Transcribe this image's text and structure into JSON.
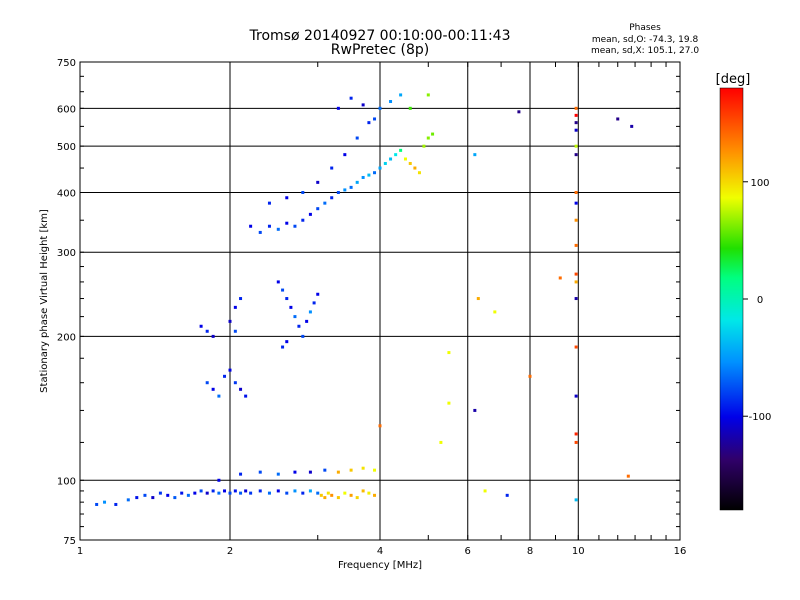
{
  "chart_data": {
    "type": "scatter",
    "title": "Tromsø 20140927 00:10:00-00:11:43",
    "subtitle": "RwPretec (8p)",
    "xlabel": "Frequency [MHz]",
    "ylabel": "Stationary phase Virtual Height [km]",
    "x_scale": "log2",
    "y_scale": "log",
    "xlim": [
      1,
      16
    ],
    "ylim": [
      75,
      750
    ],
    "x_ticks": [
      1,
      2,
      4,
      6,
      8,
      10,
      16
    ],
    "y_ticks": [
      75,
      100,
      200,
      300,
      400,
      500,
      600,
      750
    ],
    "x_gridlines": [
      2,
      4,
      6,
      8,
      10
    ],
    "y_gridlines": [
      100,
      200,
      300,
      400,
      500,
      600
    ],
    "grid": true,
    "phases": {
      "heading": "Phases",
      "o_stats": "mean, sd,O: -74.3, 19.8",
      "x_stats": "mean, sd,X: 105.1, 27.0"
    },
    "colorbar": {
      "label": "[deg]",
      "range": [
        -180,
        180
      ],
      "ticks": [
        100,
        0,
        -100
      ]
    },
    "points": [
      [
        1.08,
        89,
        -80
      ],
      [
        1.12,
        90,
        -60
      ],
      [
        1.18,
        89,
        -90
      ],
      [
        1.25,
        91,
        -70
      ],
      [
        1.3,
        92,
        -95
      ],
      [
        1.35,
        93,
        -80
      ],
      [
        1.4,
        92,
        -110
      ],
      [
        1.45,
        94,
        -85
      ],
      [
        1.5,
        93,
        -100
      ],
      [
        1.55,
        92,
        -75
      ],
      [
        1.6,
        94,
        -95
      ],
      [
        1.65,
        93,
        -70
      ],
      [
        1.7,
        94,
        -100
      ],
      [
        1.75,
        95,
        -80
      ],
      [
        1.8,
        94,
        -110
      ],
      [
        1.85,
        95,
        -90
      ],
      [
        1.9,
        94,
        -70
      ],
      [
        1.95,
        95,
        -100
      ],
      [
        2.0,
        94,
        -80
      ],
      [
        2.05,
        95,
        -95
      ],
      [
        2.1,
        94,
        -75
      ],
      [
        2.15,
        95,
        -105
      ],
      [
        2.2,
        94,
        -85
      ],
      [
        2.3,
        95,
        -90
      ],
      [
        2.4,
        94,
        -70
      ],
      [
        2.5,
        95,
        -100
      ],
      [
        2.6,
        94,
        -80
      ],
      [
        2.7,
        95,
        -60
      ],
      [
        2.8,
        94,
        -90
      ],
      [
        2.9,
        95,
        -50
      ],
      [
        3.0,
        94,
        -70
      ],
      [
        3.05,
        93,
        120
      ],
      [
        3.1,
        92,
        130
      ],
      [
        3.15,
        94,
        110
      ],
      [
        3.2,
        93,
        140
      ],
      [
        3.3,
        92,
        120
      ],
      [
        3.4,
        94,
        100
      ],
      [
        3.5,
        93,
        135
      ],
      [
        3.6,
        92,
        115
      ],
      [
        3.7,
        95,
        125
      ],
      [
        3.8,
        94,
        105
      ],
      [
        3.9,
        93,
        130
      ],
      [
        1.9,
        100,
        -100
      ],
      [
        2.1,
        103,
        -90
      ],
      [
        2.3,
        104,
        -80
      ],
      [
        2.5,
        103,
        -70
      ],
      [
        2.7,
        104,
        -100
      ],
      [
        2.9,
        104,
        -110
      ],
      [
        3.1,
        105,
        -80
      ],
      [
        3.3,
        104,
        130
      ],
      [
        3.5,
        105,
        120
      ],
      [
        3.7,
        106,
        110
      ],
      [
        3.9,
        105,
        100
      ],
      [
        1.75,
        210,
        -100
      ],
      [
        1.8,
        205,
        -90
      ],
      [
        1.85,
        200,
        -110
      ],
      [
        1.8,
        160,
        -80
      ],
      [
        1.85,
        155,
        -100
      ],
      [
        1.9,
        150,
        -70
      ],
      [
        1.95,
        165,
        -90
      ],
      [
        2.0,
        170,
        -100
      ],
      [
        2.05,
        160,
        -85
      ],
      [
        2.1,
        155,
        -110
      ],
      [
        2.15,
        150,
        -95
      ],
      [
        2.05,
        230,
        -100
      ],
      [
        2.1,
        240,
        -90
      ],
      [
        2.0,
        215,
        -110
      ],
      [
        2.05,
        205,
        -80
      ],
      [
        2.5,
        260,
        -100
      ],
      [
        2.55,
        250,
        -80
      ],
      [
        2.6,
        240,
        -90
      ],
      [
        2.65,
        230,
        -100
      ],
      [
        2.7,
        220,
        -70
      ],
      [
        2.75,
        210,
        -90
      ],
      [
        2.8,
        200,
        -80
      ],
      [
        2.85,
        215,
        -100
      ],
      [
        2.9,
        225,
        -60
      ],
      [
        2.95,
        235,
        -90
      ],
      [
        3.0,
        245,
        -100
      ],
      [
        2.6,
        195,
        -100
      ],
      [
        2.55,
        190,
        -90
      ],
      [
        2.2,
        340,
        -100
      ],
      [
        2.3,
        330,
        -80
      ],
      [
        2.4,
        340,
        -90
      ],
      [
        2.5,
        335,
        -70
      ],
      [
        2.6,
        345,
        -100
      ],
      [
        2.7,
        340,
        -80
      ],
      [
        2.8,
        350,
        -90
      ],
      [
        2.9,
        360,
        -100
      ],
      [
        3.0,
        370,
        -80
      ],
      [
        3.1,
        380,
        -70
      ],
      [
        3.2,
        390,
        -90
      ],
      [
        3.3,
        400,
        -80
      ],
      [
        3.4,
        405,
        -60
      ],
      [
        3.5,
        410,
        -70
      ],
      [
        3.6,
        420,
        -50
      ],
      [
        3.7,
        430,
        -60
      ],
      [
        3.8,
        435,
        -40
      ],
      [
        3.9,
        440,
        -70
      ],
      [
        4.0,
        450,
        -50
      ],
      [
        4.1,
        460,
        -30
      ],
      [
        4.2,
        470,
        -40
      ],
      [
        4.3,
        480,
        -20
      ],
      [
        4.4,
        490,
        0
      ],
      [
        4.5,
        470,
        100
      ],
      [
        4.6,
        460,
        120
      ],
      [
        4.7,
        450,
        130
      ],
      [
        4.8,
        440,
        110
      ],
      [
        4.9,
        500,
        70
      ],
      [
        5.0,
        520,
        60
      ],
      [
        5.1,
        530,
        50
      ],
      [
        2.4,
        380,
        -90
      ],
      [
        2.6,
        390,
        -100
      ],
      [
        2.8,
        400,
        -80
      ],
      [
        3.0,
        420,
        -110
      ],
      [
        3.2,
        450,
        -90
      ],
      [
        3.4,
        480,
        -100
      ],
      [
        3.6,
        520,
        -80
      ],
      [
        3.8,
        560,
        -90
      ],
      [
        4.0,
        600,
        -70
      ],
      [
        4.2,
        620,
        -60
      ],
      [
        3.3,
        600,
        -100
      ],
      [
        3.5,
        630,
        -90
      ],
      [
        3.7,
        610,
        -110
      ],
      [
        3.9,
        570,
        -80
      ],
      [
        4.4,
        640,
        -50
      ],
      [
        4.6,
        600,
        30
      ],
      [
        5.0,
        640,
        60
      ],
      [
        6.2,
        480,
        -50
      ],
      [
        6.3,
        240,
        130
      ],
      [
        6.8,
        225,
        100
      ],
      [
        5.5,
        185,
        100
      ],
      [
        6.2,
        140,
        -120
      ],
      [
        5.5,
        145,
        100
      ],
      [
        4.0,
        130,
        150
      ],
      [
        5.3,
        120,
        100
      ],
      [
        6.5,
        95,
        100
      ],
      [
        7.2,
        93,
        -90
      ],
      [
        8.0,
        165,
        150
      ],
      [
        9.2,
        265,
        150
      ],
      [
        9.9,
        600,
        150
      ],
      [
        9.9,
        580,
        180
      ],
      [
        9.9,
        560,
        -130
      ],
      [
        9.9,
        540,
        -110
      ],
      [
        9.9,
        500,
        80
      ],
      [
        9.9,
        480,
        -130
      ],
      [
        9.9,
        400,
        150
      ],
      [
        9.9,
        380,
        -100
      ],
      [
        9.9,
        350,
        140
      ],
      [
        9.9,
        310,
        150
      ],
      [
        9.9,
        270,
        160
      ],
      [
        9.9,
        260,
        130
      ],
      [
        9.9,
        240,
        -120
      ],
      [
        9.9,
        190,
        160
      ],
      [
        9.9,
        150,
        -110
      ],
      [
        9.9,
        125,
        170
      ],
      [
        9.9,
        120,
        160
      ],
      [
        9.9,
        91,
        -40
      ],
      [
        7.6,
        590,
        -130
      ],
      [
        12.0,
        570,
        -130
      ],
      [
        12.8,
        550,
        -120
      ],
      [
        12.6,
        102,
        150
      ]
    ]
  }
}
